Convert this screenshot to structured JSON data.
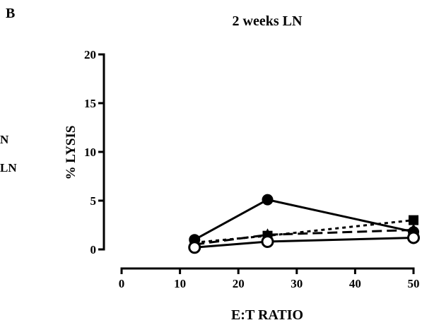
{
  "panel_label": "B",
  "left_fragments": [
    "N",
    "LN"
  ],
  "chart_data": {
    "type": "line",
    "title": "2 weeks LN",
    "xlabel": "E:T RATIO",
    "ylabel": "% LYSIS",
    "xlim": [
      0,
      50
    ],
    "ylim": [
      0,
      20
    ],
    "x_ticks": [
      0,
      10,
      20,
      30,
      40,
      50
    ],
    "y_ticks": [
      0,
      5,
      10,
      15,
      20
    ],
    "grid": false,
    "x": [
      12.5,
      25,
      50
    ],
    "series": [
      {
        "marker": "filled-circle",
        "line": "solid",
        "values": [
          1.0,
          5.1,
          1.8
        ]
      },
      {
        "marker": "filled-square",
        "line": "dotted",
        "values": [
          0.7,
          1.4,
          3.0
        ]
      },
      {
        "marker": "filled-triangle",
        "line": "dashed",
        "values": [
          0.5,
          1.5,
          2.0
        ]
      },
      {
        "marker": "open-circle",
        "line": "solid",
        "values": [
          0.2,
          0.8,
          1.2
        ]
      }
    ]
  }
}
